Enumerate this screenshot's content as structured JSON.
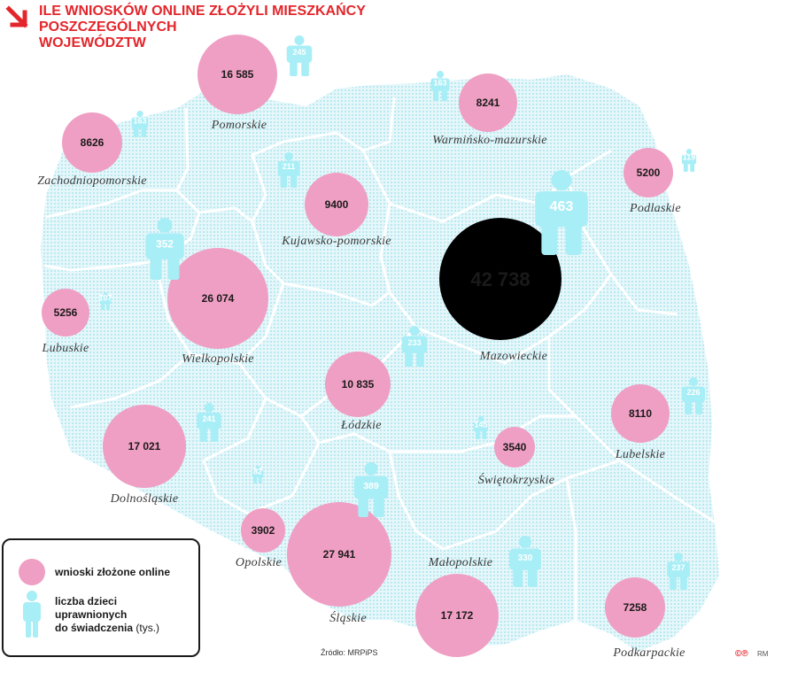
{
  "title": {
    "lines": [
      "ILE WNIOSKÓW ONLINE ZŁOŻYLI MIESZKAŃCY",
      "POSZCZEGÓLNYCH",
      "WOJEWÓDZTW"
    ]
  },
  "colors": {
    "accent": "#e3262b",
    "pink": "#ef9fc3",
    "cyan": "#a8eef6",
    "map": "#dff5f9",
    "highlight": "#000000"
  },
  "regions": [
    {
      "name": "Pomorskie",
      "applications": "16 585",
      "children": "245"
    },
    {
      "name": "Zachodniopomorskie",
      "applications": "8626",
      "children": "163"
    },
    {
      "name": "Warmińsko-mazurskie",
      "applications": "8241",
      "children": "163"
    },
    {
      "name": "Podlaskie",
      "applications": "5200",
      "children": "119"
    },
    {
      "name": "Kujawsko-pomorskie",
      "applications": "9400",
      "children": "211"
    },
    {
      "name": "Mazowieckie",
      "applications": "42 738",
      "children": "463"
    },
    {
      "name": "Lubuskie",
      "applications": "5256",
      "children": "107"
    },
    {
      "name": "Wielkopolskie",
      "applications": "26 074",
      "children": "352"
    },
    {
      "name": "Łódzkie",
      "applications": "10 835",
      "children": "233"
    },
    {
      "name": "Lubelskie",
      "applications": "8110",
      "children": "226"
    },
    {
      "name": "Dolnośląskie",
      "applications": "17 021",
      "children": "241"
    },
    {
      "name": "Świętokrzyskie",
      "applications": "3540",
      "children": "145"
    },
    {
      "name": "Opolskie",
      "applications": "3902",
      "children": "82"
    },
    {
      "name": "Śląskie",
      "applications": "27 941",
      "children": "389"
    },
    {
      "name": "Małopolskie",
      "applications": "17 172",
      "children": "330"
    },
    {
      "name": "Podkarpackie",
      "applications": "7258",
      "children": "237"
    }
  ],
  "legend": {
    "applications_label": "wnioski złożone online",
    "children_label_lines": [
      "liczba dzieci",
      "uprawnionych",
      "do świadczenia"
    ],
    "children_unit": "(tys.)"
  },
  "source": "Źródło: MRPiPS",
  "credits": {
    "logo": "©℗",
    "author": "RM"
  }
}
